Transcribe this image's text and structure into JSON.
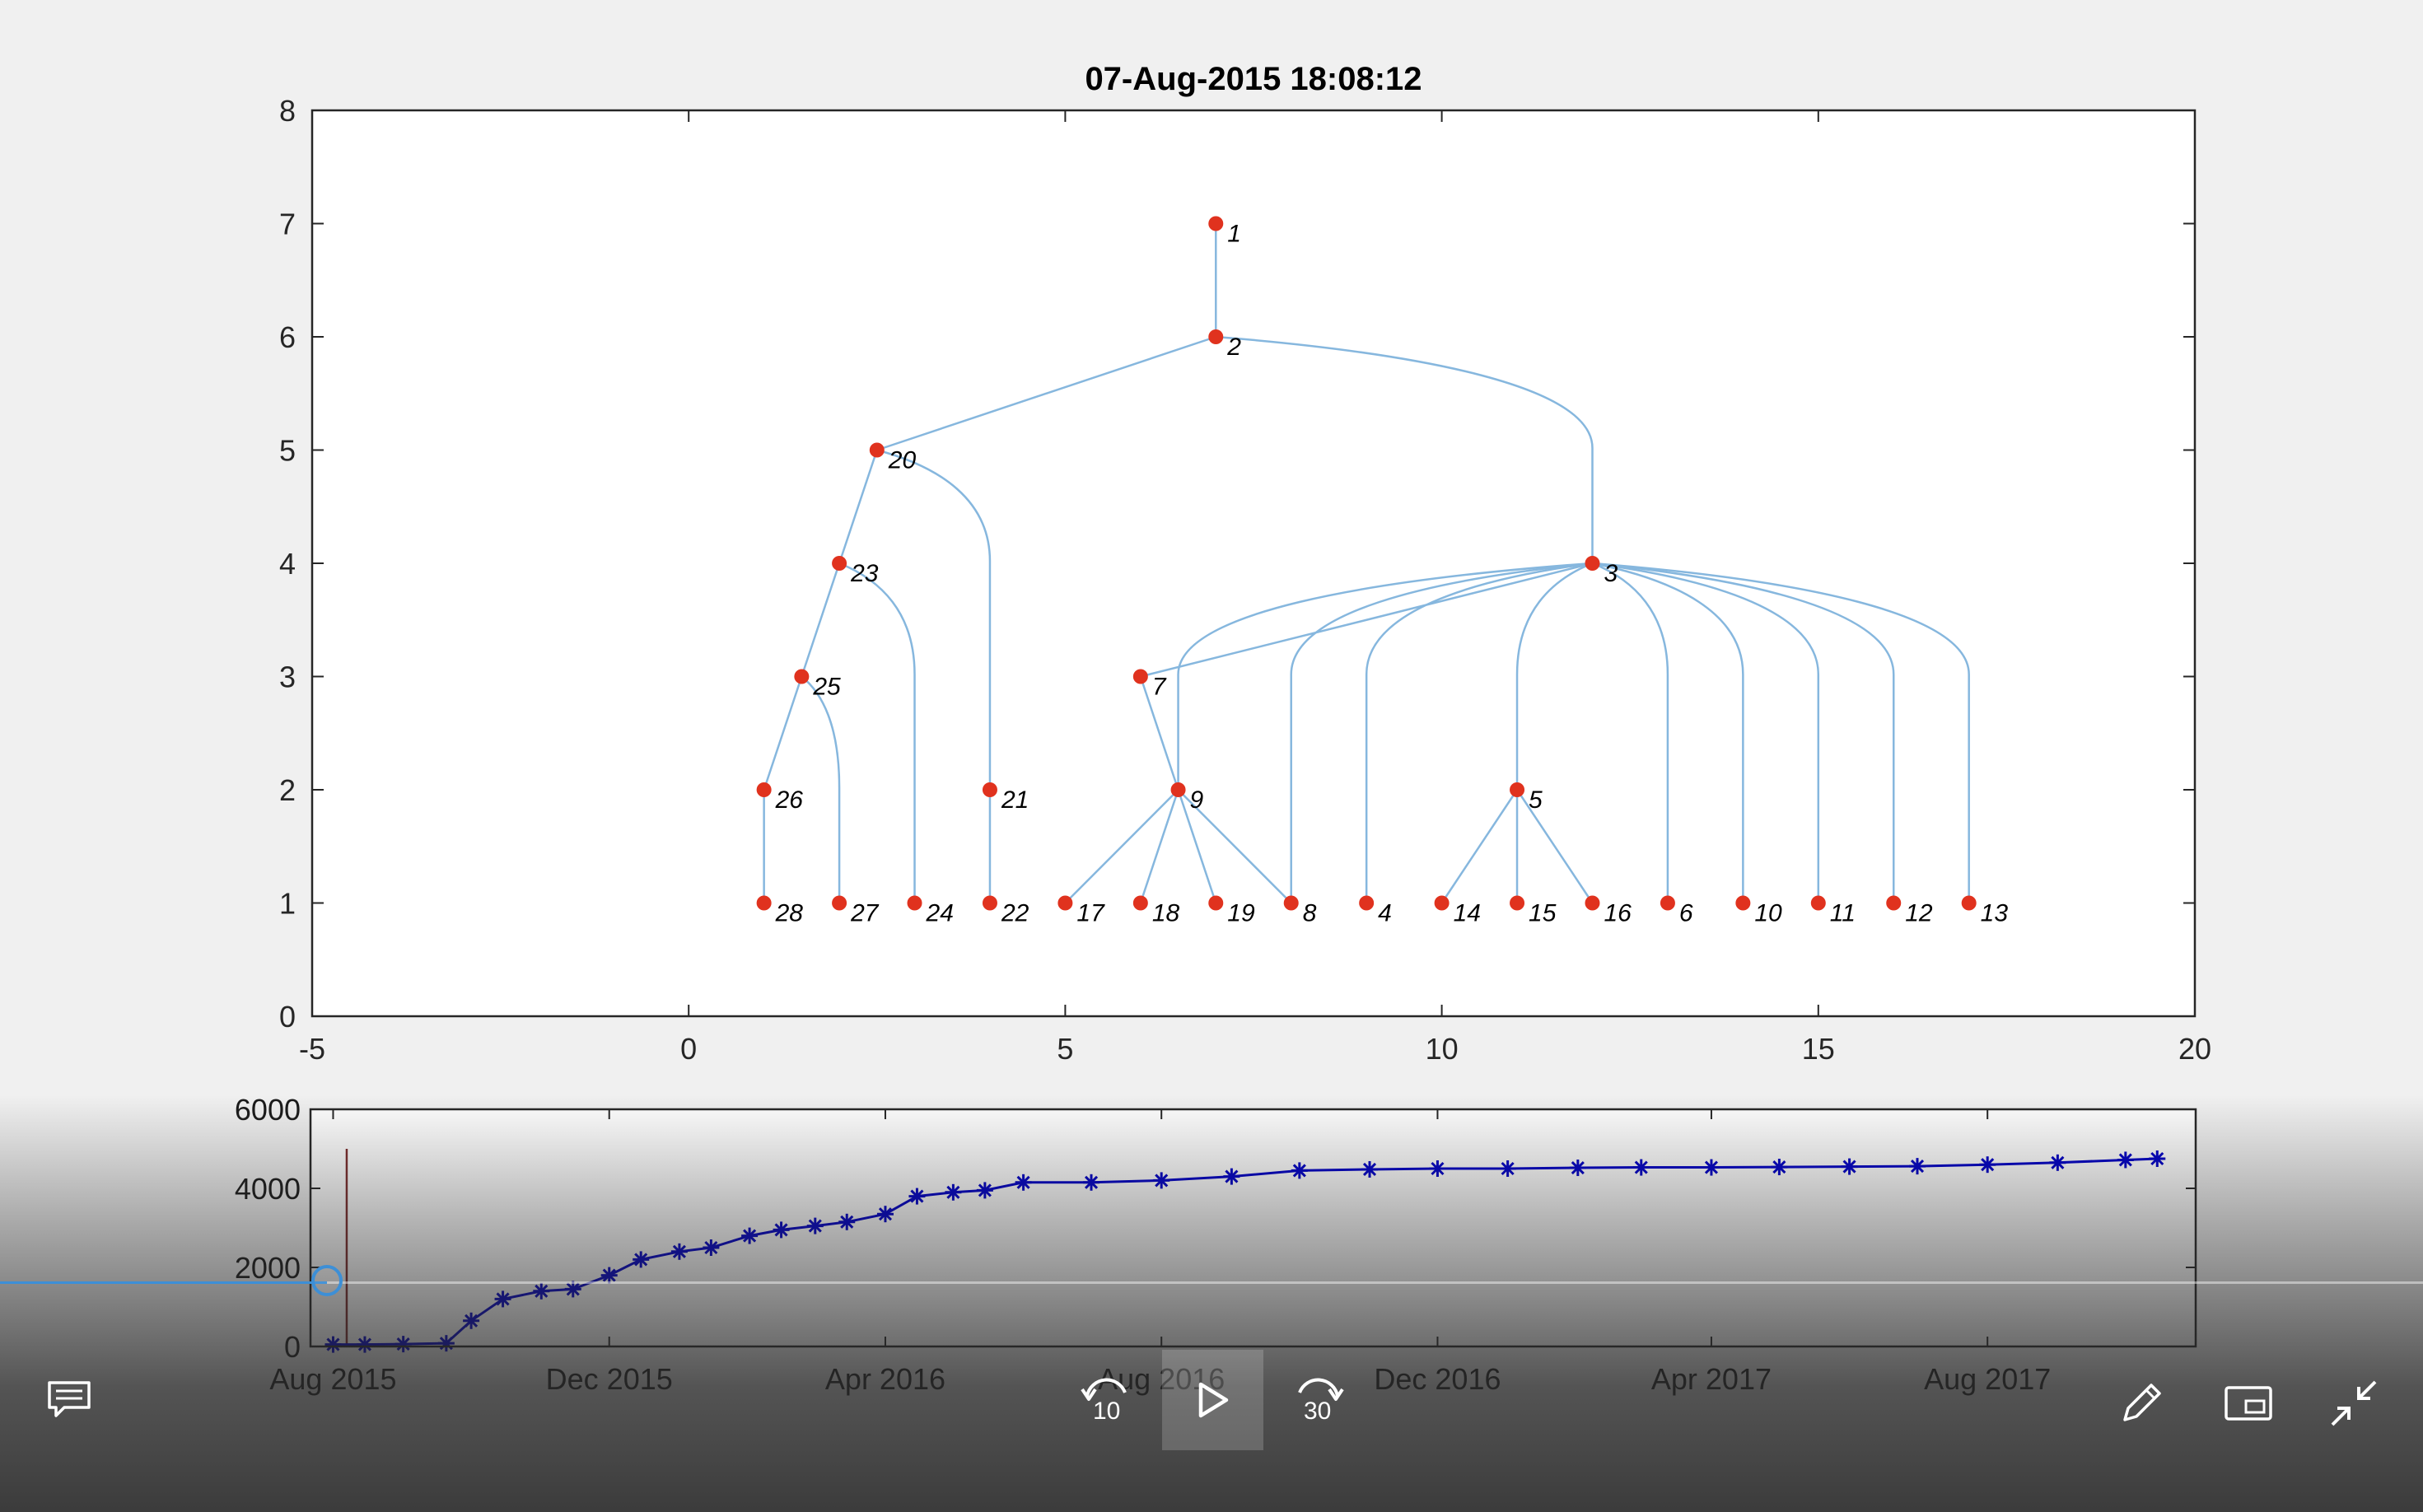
{
  "chart_data": [
    {
      "type": "tree",
      "title": "07-Aug-2015 18:08:12",
      "xlim": [
        -5,
        20
      ],
      "ylim": [
        0,
        8
      ],
      "xticks": [
        -5,
        0,
        5,
        10,
        15,
        20
      ],
      "yticks": [
        0,
        1,
        2,
        3,
        4,
        5,
        6,
        7,
        8
      ],
      "nodes": [
        {
          "id": "1",
          "x": 7,
          "y": 7
        },
        {
          "id": "2",
          "x": 7,
          "y": 6
        },
        {
          "id": "20",
          "x": 2.5,
          "y": 5
        },
        {
          "id": "3",
          "x": 12,
          "y": 4
        },
        {
          "id": "23",
          "x": 2,
          "y": 4
        },
        {
          "id": "25",
          "x": 1.5,
          "y": 3
        },
        {
          "id": "7",
          "x": 6,
          "y": 3
        },
        {
          "id": "26",
          "x": 1,
          "y": 2
        },
        {
          "id": "21",
          "x": 4,
          "y": 2
        },
        {
          "id": "9",
          "x": 6.5,
          "y": 2
        },
        {
          "id": "5",
          "x": 11,
          "y": 2
        },
        {
          "id": "28",
          "x": 1,
          "y": 1
        },
        {
          "id": "27",
          "x": 2,
          "y": 1
        },
        {
          "id": "24",
          "x": 3,
          "y": 1
        },
        {
          "id": "22",
          "x": 4,
          "y": 1
        },
        {
          "id": "17",
          "x": 5,
          "y": 1
        },
        {
          "id": "18",
          "x": 6,
          "y": 1
        },
        {
          "id": "19",
          "x": 7,
          "y": 1
        },
        {
          "id": "8",
          "x": 8,
          "y": 1
        },
        {
          "id": "4",
          "x": 9,
          "y": 1
        },
        {
          "id": "14",
          "x": 10,
          "y": 1
        },
        {
          "id": "15",
          "x": 11,
          "y": 1
        },
        {
          "id": "16",
          "x": 12,
          "y": 1
        },
        {
          "id": "6",
          "x": 13,
          "y": 1
        },
        {
          "id": "10",
          "x": 14,
          "y": 1
        },
        {
          "id": "11",
          "x": 15,
          "y": 1
        },
        {
          "id": "12",
          "x": 16,
          "y": 1
        },
        {
          "id": "13",
          "x": 17,
          "y": 1
        }
      ],
      "edges": [
        [
          "1",
          "2"
        ],
        [
          "2",
          "20"
        ],
        [
          "2",
          "3"
        ],
        [
          "20",
          "23"
        ],
        [
          "20",
          "21"
        ],
        [
          "23",
          "25"
        ],
        [
          "23",
          "24"
        ],
        [
          "25",
          "26"
        ],
        [
          "25",
          "27"
        ],
        [
          "26",
          "28"
        ],
        [
          "21",
          "22"
        ],
        [
          "3",
          "7"
        ],
        [
          "3",
          "9"
        ],
        [
          "3",
          "8"
        ],
        [
          "3",
          "4"
        ],
        [
          "3",
          "5"
        ],
        [
          "3",
          "6"
        ],
        [
          "3",
          "10"
        ],
        [
          "3",
          "11"
        ],
        [
          "3",
          "12"
        ],
        [
          "3",
          "13"
        ],
        [
          "7",
          "9"
        ],
        [
          "9",
          "17"
        ],
        [
          "9",
          "18"
        ],
        [
          "9",
          "19"
        ],
        [
          "9",
          "8"
        ],
        [
          "5",
          "14"
        ],
        [
          "5",
          "15"
        ],
        [
          "5",
          "16"
        ]
      ],
      "colors": {
        "node": "#e0321e",
        "edge": "#86b7de"
      }
    },
    {
      "type": "line",
      "marker": "asterisk",
      "x_type": "date",
      "xlim": [
        "2015-07-22",
        "2017-11-01"
      ],
      "ylim": [
        0,
        6000
      ],
      "yticks": [
        0,
        2000,
        4000,
        6000
      ],
      "xtick_dates": [
        "2015-08-01",
        "2015-12-01",
        "2016-04-01",
        "2016-08-01",
        "2016-12-01",
        "2017-04-01",
        "2017-08-01"
      ],
      "xtick_labels": [
        "Aug 2015",
        "Dec 2015",
        "Apr 2016",
        "Aug 2016",
        "Dec 2016",
        "Apr 2017",
        "Aug 2017"
      ],
      "cursor_date": "2015-08-07",
      "cursor_max": 5000,
      "series": [
        {
          "x": [
            "2015-08-01",
            "2015-08-15",
            "2015-09-01",
            "2015-09-20",
            "2015-10-01",
            "2015-10-15",
            "2015-11-01",
            "2015-11-15",
            "2015-12-01",
            "2015-12-15",
            "2016-01-01",
            "2016-01-15",
            "2016-02-01",
            "2016-02-15",
            "2016-03-01",
            "2016-03-15",
            "2016-04-01",
            "2016-04-15",
            "2016-05-01",
            "2016-05-15",
            "2016-06-01",
            "2016-07-01",
            "2016-08-01",
            "2016-09-01",
            "2016-10-01",
            "2016-11-01",
            "2016-12-01",
            "2017-01-01",
            "2017-02-01",
            "2017-03-01",
            "2017-04-01",
            "2017-05-01",
            "2017-06-01",
            "2017-07-01",
            "2017-08-01",
            "2017-09-01",
            "2017-10-01",
            "2017-10-15"
          ],
          "y": [
            50,
            50,
            60,
            80,
            650,
            1200,
            1400,
            1450,
            1800,
            2200,
            2400,
            2500,
            2800,
            2950,
            3050,
            3150,
            3350,
            3800,
            3900,
            3950,
            4150,
            4150,
            4200,
            4300,
            4450,
            4480,
            4500,
            4500,
            4520,
            4530,
            4530,
            4540,
            4550,
            4560,
            4600,
            4650,
            4720,
            4750
          ]
        }
      ],
      "colors": {
        "line": "#0000c8",
        "cursor": "#7a2a2a"
      }
    }
  ],
  "player": {
    "rewind_label": "10",
    "forward_label": "30",
    "progress": 0.135
  },
  "icons": {
    "captions": "speech-bubble-icon",
    "rewind": "rewind-10-icon",
    "play": "play-icon",
    "forward": "forward-30-icon",
    "pen": "pen-icon",
    "pip": "picture-in-picture-icon",
    "exit_fullscreen": "exit-fullscreen-icon"
  }
}
